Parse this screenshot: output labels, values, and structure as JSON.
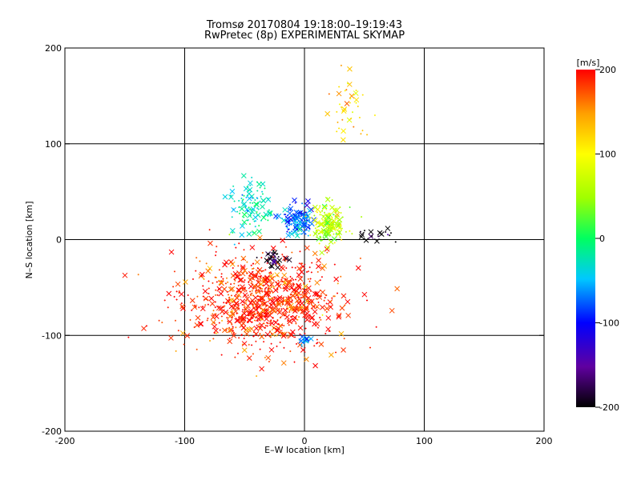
{
  "title_line1": "Tromsø 20170804 19:18:00–19:19:43",
  "title_line2": "RwPretec (8p) EXPERIMENTAL SKYMAP",
  "chart_data": {
    "type": "scatter",
    "xlabel": "E–W location [km]",
    "ylabel": "N–S location [km]",
    "xlim": [
      -200,
      200
    ],
    "ylim": [
      -200,
      200
    ],
    "xticks": [
      -200,
      -100,
      0,
      100,
      200
    ],
    "yticks": [
      -200,
      -100,
      0,
      100,
      200
    ],
    "grid": true,
    "colorbar": {
      "label": "[m/s]",
      "range": [
        -200,
        200
      ],
      "ticks": [
        -200,
        -100,
        0,
        100,
        200
      ],
      "colormap": [
        "#000000",
        "#6000a0",
        "#0000ff",
        "#00c8ff",
        "#00ff60",
        "#a0ff00",
        "#ffff00",
        "#ffa000",
        "#ff0000"
      ]
    },
    "points_summary": {
      "markers": [
        "x",
        "+"
      ],
      "description_of_clusters": [
        {
          "center": [
            -35,
            -65
          ],
          "spread": [
            55,
            40
          ],
          "velocity": 190
        },
        {
          "center": [
            -5,
            20
          ],
          "spread": [
            12,
            14
          ],
          "velocity": -75
        },
        {
          "center": [
            20,
            15
          ],
          "spread": [
            12,
            18
          ],
          "velocity": 70
        },
        {
          "center": [
            -45,
            35
          ],
          "spread": [
            14,
            25
          ],
          "velocity": -25
        },
        {
          "center": [
            0,
            -105
          ],
          "spread": [
            4,
            4
          ],
          "velocity": -60
        },
        {
          "center": [
            35,
            140
          ],
          "spread": [
            12,
            30
          ],
          "velocity": 120
        },
        {
          "center": [
            -25,
            -20
          ],
          "spread": [
            8,
            8
          ],
          "velocity": -190
        },
        {
          "center": [
            60,
            5
          ],
          "spread": [
            15,
            6
          ],
          "velocity": -200
        }
      ]
    }
  }
}
